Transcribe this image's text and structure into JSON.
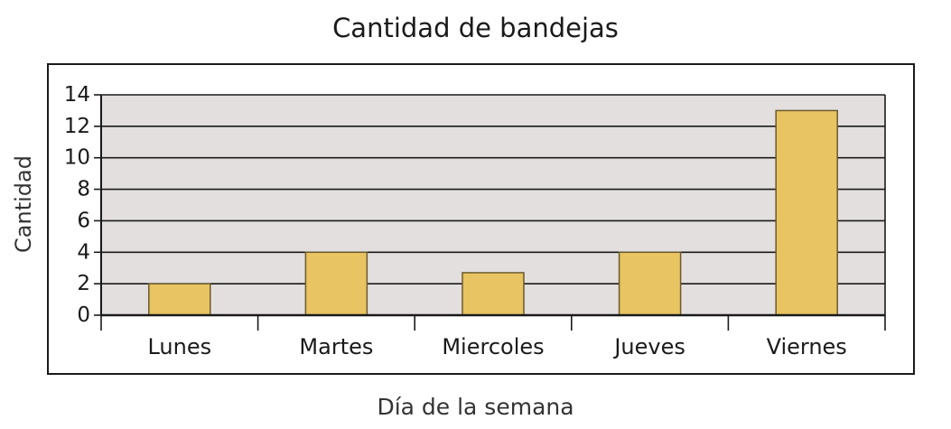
{
  "chart_data": {
    "type": "bar",
    "title": "Cantidad de bandejas",
    "xlabel": "Día de la semana",
    "ylabel": "Cantidad",
    "categories": [
      "Lunes",
      "Martes",
      "Miercoles",
      "Jueves",
      "Viernes"
    ],
    "values": [
      2,
      4,
      2.7,
      4,
      13
    ],
    "ylim": [
      0,
      14
    ],
    "yticks": [
      "0",
      "2",
      "4",
      "6",
      "8",
      "10",
      "12",
      "14"
    ],
    "grid": true,
    "legend": "none",
    "colors": {
      "bar_fill": "#e8c462",
      "bar_stroke": "#6b5a2e",
      "plot_background": "#e3dfdf",
      "gridline": "#1a1a1a"
    }
  }
}
